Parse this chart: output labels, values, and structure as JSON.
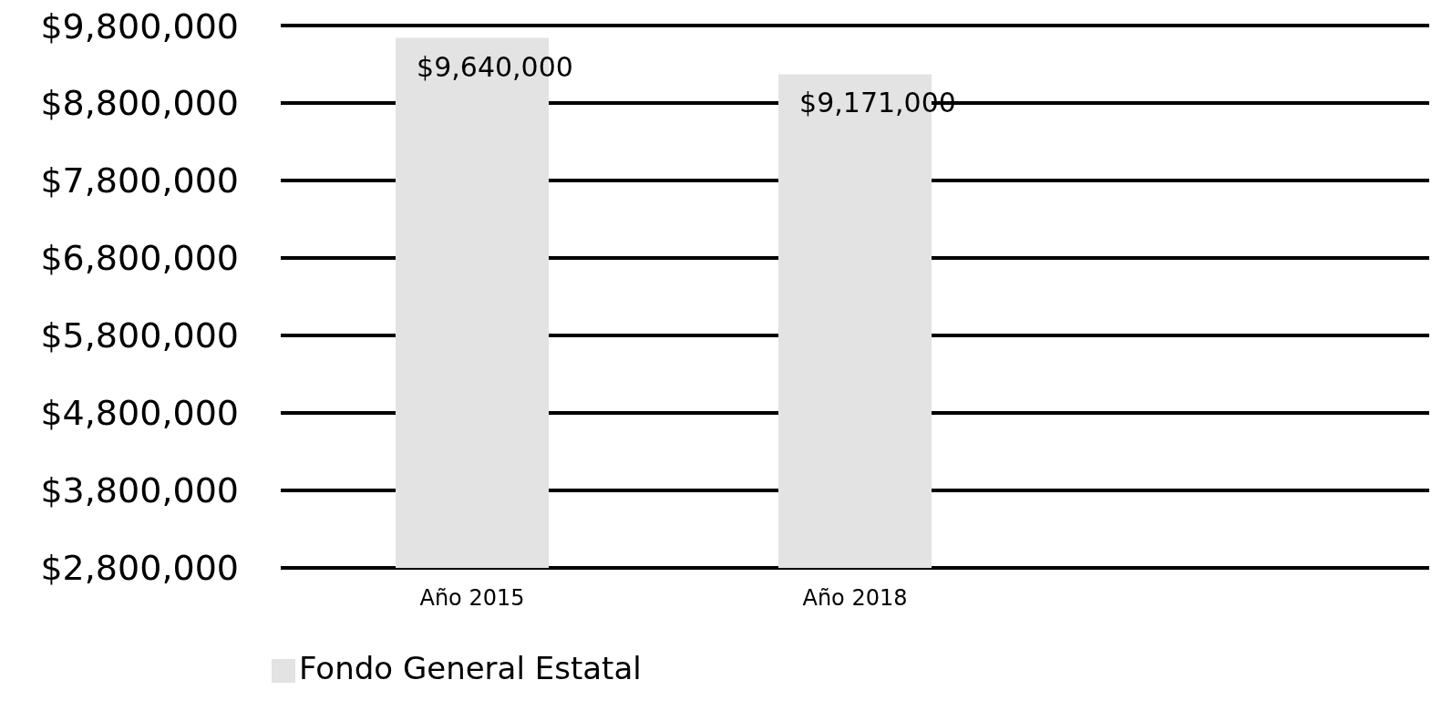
{
  "chart_data": {
    "type": "bar",
    "categories": [
      "Año 2015",
      "Año 2018",
      null
    ],
    "series": [
      {
        "name": "Fondo General Estatal",
        "color": "#e3e3e3",
        "values": [
          9640000,
          9171000,
          null
        ],
        "value_labels": [
          "$9,640,000",
          "$9,171,000",
          null
        ]
      }
    ],
    "ylim": [
      2800000,
      9800000
    ],
    "yticks": [
      {
        "value": 2800000,
        "label": "$2,800,000"
      },
      {
        "value": 3800000,
        "label": "$3,800,000"
      },
      {
        "value": 4800000,
        "label": "$4,800,000"
      },
      {
        "value": 5800000,
        "label": "$5,800,000"
      },
      {
        "value": 6800000,
        "label": "$6,800,000"
      },
      {
        "value": 7800000,
        "label": "$7,800,000"
      },
      {
        "value": 8800000,
        "label": "$8,800,000"
      },
      {
        "value": 9800000,
        "label": "$9,800,000"
      }
    ],
    "grid": "y",
    "legend": "bottom left"
  }
}
